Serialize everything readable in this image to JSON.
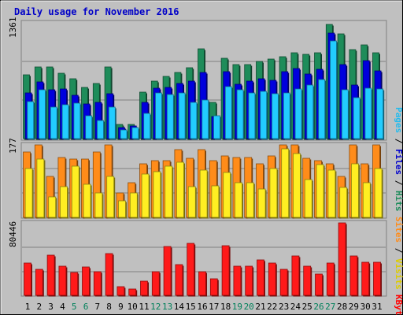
{
  "chart_data": {
    "type": "bar",
    "title": "Daily usage for November 2016",
    "days": [
      "1",
      "2",
      "3",
      "4",
      "5",
      "6",
      "7",
      "8",
      "9",
      "10",
      "11",
      "12",
      "13",
      "14",
      "15",
      "16",
      "17",
      "18",
      "19",
      "20",
      "21",
      "22",
      "23",
      "24",
      "25",
      "26",
      "27",
      "28",
      "29",
      "30",
      "31"
    ],
    "weekend_days": [
      "5",
      "6",
      "12",
      "13",
      "19",
      "20",
      "26",
      "27"
    ],
    "panels": [
      {
        "id": "traffic",
        "ymax_label": "1361",
        "ymax": 1361,
        "series": [
          {
            "name": "Hits",
            "color": "#1e8c5a",
            "values": [
              748,
              840,
              840,
              764,
              700,
              598,
              648,
              840,
              170,
              170,
              545,
              672,
              730,
              777,
              825,
              1049,
              425,
              936,
              860,
              860,
              897,
              925,
              955,
              1006,
              984,
              1006,
              1333,
              1223,
              1043,
              1090,
              1000
            ]
          },
          {
            "name": "Files",
            "color": "#0000dd",
            "values": [
              537,
              660,
              573,
              580,
              509,
              405,
              421,
              520,
              130,
              145,
              421,
              592,
              600,
              646,
              669,
              772,
              257,
              778,
              630,
              670,
              700,
              681,
              780,
              815,
              754,
              806,
              1231,
              860,
              628,
              910,
              795
            ]
          },
          {
            "name": "Pages",
            "color": "#22ccff",
            "values": [
              436,
              570,
              370,
              393,
              414,
              270,
              213,
              370,
              100,
              130,
              290,
              535,
              512,
              530,
              425,
              450,
              270,
              605,
              570,
              530,
              553,
              523,
              530,
              580,
              626,
              687,
              1140,
              570,
              475,
              590,
              575
            ]
          }
        ]
      },
      {
        "id": "visitors",
        "ymax_label": "177",
        "ymax": 177,
        "series": [
          {
            "name": "Visits",
            "color": "#ff8c1a",
            "values": [
              160,
              177,
              100,
              147,
              143,
              143,
              160,
              177,
              60,
              85,
              130,
              139,
              139,
              165,
              145,
              165,
              139,
              151,
              147,
              147,
              130,
              151,
              177,
              177,
              145,
              139,
              130,
              100,
              177,
              130,
              177
            ]
          },
          {
            "name": "Sites",
            "color": "#ffee22",
            "values": [
              120,
              143,
              50,
              75,
              125,
              80,
              60,
              100,
              40,
              60,
              105,
              112,
              125,
              135,
              75,
              115,
              77,
              109,
              85,
              85,
              70,
              120,
              167,
              155,
              93,
              128,
              115,
              73,
              130,
              85,
              120
            ]
          }
        ]
      },
      {
        "id": "kbytes",
        "ymax_label": "80446",
        "ymax": 80446,
        "series": [
          {
            "name": "KBytes",
            "color": "#ff1a1a",
            "values": [
              35500,
              28500,
              45000,
              32000,
              25000,
              31500,
              26500,
              46000,
              10000,
              7000,
              16000,
              26000,
              54000,
              34000,
              58000,
              26000,
              18000,
              55000,
              32000,
              32000,
              39000,
              36000,
              29000,
              44000,
              32000,
              24000,
              36000,
              80446,
              44000,
              37000,
              37000
            ]
          }
        ]
      }
    ],
    "side_labels": [
      {
        "parts": [
          {
            "text": "Pages",
            "color": "#22bbee"
          },
          {
            "text": " / ",
            "color": "#000000"
          },
          {
            "text": "Files",
            "color": "#0000cc"
          },
          {
            "text": " / ",
            "color": "#000000"
          },
          {
            "text": "Hits",
            "color": "#1e8c5a"
          }
        ]
      },
      {
        "parts": [
          {
            "text": "Sites",
            "color": "#ff8c1a"
          },
          {
            "text": " / ",
            "color": "#000000"
          },
          {
            "text": "Visits",
            "color": "#ddcc00"
          }
        ]
      },
      {
        "parts": [
          {
            "text": "KBytes",
            "color": "#ff0000"
          }
        ]
      }
    ],
    "weekday_label_color": "#000000",
    "weekend_label_color": "#00805a",
    "grid": true
  }
}
